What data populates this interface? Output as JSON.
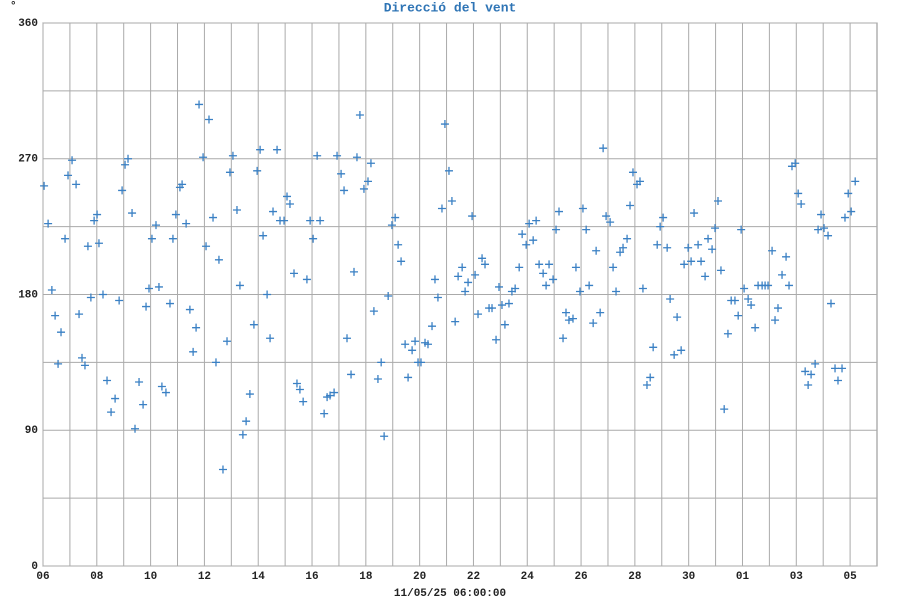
{
  "chart_data": {
    "type": "scatter",
    "title": "Direcció del vent",
    "xlabel": "11/05/25 06:00:00",
    "ylabel": "°",
    "color": "#3a80c4",
    "marker": "+",
    "grid": true,
    "xlim": [
      0,
      31
    ],
    "ylim": [
      0,
      360
    ],
    "xticks": [
      {
        "value": 0,
        "label": "06"
      },
      {
        "value": 2,
        "label": "08"
      },
      {
        "value": 4,
        "label": "10"
      },
      {
        "value": 6,
        "label": "12"
      },
      {
        "value": 8,
        "label": "14"
      },
      {
        "value": 10,
        "label": "16"
      },
      {
        "value": 12,
        "label": "18"
      },
      {
        "value": 14,
        "label": "20"
      },
      {
        "value": 16,
        "label": "22"
      },
      {
        "value": 18,
        "label": "24"
      },
      {
        "value": 20,
        "label": "26"
      },
      {
        "value": 22,
        "label": "28"
      },
      {
        "value": 24,
        "label": "30"
      },
      {
        "value": 26,
        "label": "01"
      },
      {
        "value": 28,
        "label": "03"
      },
      {
        "value": 30,
        "label": "05"
      }
    ],
    "xminorticks": [
      1,
      3,
      5,
      7,
      9,
      11,
      13,
      15,
      17,
      19,
      21,
      23,
      25,
      27,
      29
    ],
    "yticks": [
      0,
      90,
      180,
      270,
      360
    ],
    "yminorticks": [
      45,
      135,
      225,
      315
    ],
    "x": [
      0.04,
      0.19,
      0.33,
      0.45,
      0.56,
      0.67,
      0.82,
      0.93,
      1.08,
      1.23,
      1.34,
      1.45,
      1.56,
      1.67,
      1.78,
      1.9,
      2.01,
      2.08,
      2.23,
      2.38,
      2.53,
      2.68,
      2.83,
      2.94,
      3.05,
      3.16,
      3.31,
      3.42,
      3.57,
      3.72,
      3.83,
      3.94,
      4.05,
      4.2,
      4.31,
      4.42,
      4.57,
      4.72,
      4.83,
      4.94,
      5.09,
      5.17,
      5.32,
      5.46,
      5.58,
      5.69,
      5.8,
      5.95,
      6.06,
      6.17,
      6.32,
      6.43,
      6.54,
      6.69,
      6.84,
      6.95,
      7.06,
      7.21,
      7.32,
      7.43,
      7.55,
      7.69,
      7.84,
      7.96,
      8.07,
      8.18,
      8.33,
      8.44,
      8.55,
      8.7,
      8.81,
      8.96,
      9.07,
      9.18,
      9.33,
      9.44,
      9.55,
      9.67,
      9.81,
      9.93,
      10.04,
      10.19,
      10.3,
      10.45,
      10.56,
      10.67,
      10.82,
      10.93,
      11.08,
      11.19,
      11.3,
      11.45,
      11.56,
      11.67,
      11.78,
      11.93,
      12.08,
      12.19,
      12.3,
      12.45,
      12.57,
      12.68,
      12.83,
      12.97,
      13.09,
      13.2,
      13.31,
      13.46,
      13.57,
      13.72,
      13.83,
      13.94,
      14.05,
      14.2,
      14.31,
      14.46,
      14.57,
      14.68,
      14.83,
      14.94,
      15.09,
      15.2,
      15.32,
      15.43,
      15.58,
      15.69,
      15.8,
      15.95,
      16.06,
      16.17,
      16.32,
      16.43,
      16.58,
      16.69,
      16.84,
      16.95,
      17.06,
      17.17,
      17.32,
      17.43,
      17.55,
      17.7,
      17.81,
      17.96,
      18.07,
      18.22,
      18.33,
      18.44,
      18.59,
      18.7,
      18.81,
      18.96,
      19.07,
      19.18,
      19.33,
      19.44,
      19.55,
      19.7,
      19.81,
      19.96,
      20.07,
      20.19,
      20.3,
      20.45,
      20.56,
      20.71,
      20.82,
      20.93,
      21.08,
      21.19,
      21.3,
      21.45,
      21.56,
      21.71,
      21.82,
      21.93,
      22.08,
      22.19,
      22.3,
      22.45,
      22.57,
      22.68,
      22.83,
      22.94,
      23.05,
      23.2,
      23.31,
      23.46,
      23.57,
      23.72,
      23.83,
      23.98,
      24.09,
      24.2,
      24.35,
      24.46,
      24.61,
      24.72,
      24.87,
      24.98,
      25.09,
      25.2,
      25.32,
      25.46,
      25.58,
      25.72,
      25.84,
      25.95,
      26.06,
      26.21,
      26.32,
      26.47,
      26.58,
      26.73,
      26.84,
      26.95,
      27.1,
      27.21,
      27.32,
      27.47,
      27.62,
      27.73,
      27.84,
      27.96,
      28.07,
      28.18,
      28.33,
      28.44,
      28.55,
      28.7,
      28.81,
      28.92,
      29.03,
      29.18,
      29.29,
      29.44,
      29.55,
      29.7,
      29.81,
      29.93,
      30.04,
      30.19
    ],
    "values": [
      252,
      227,
      183,
      166,
      134,
      155,
      217,
      259,
      269,
      253,
      167,
      138,
      133,
      212,
      178,
      229,
      233,
      214,
      180,
      123,
      102,
      111,
      176,
      249,
      266,
      270,
      234,
      91,
      122,
      107,
      172,
      184,
      217,
      226,
      185,
      119,
      115,
      174,
      217,
      233,
      251,
      253,
      227,
      170,
      142,
      158,
      306,
      271,
      212,
      296,
      231,
      135,
      203,
      64,
      149,
      261,
      272,
      236,
      186,
      87,
      96,
      114,
      160,
      262,
      276,
      219,
      180,
      151,
      235,
      276,
      229,
      229,
      245,
      240,
      194,
      121,
      117,
      109,
      190,
      229,
      217,
      272,
      229,
      101,
      112,
      113,
      115,
      272,
      260,
      249,
      151,
      127,
      195,
      271,
      299,
      250,
      255,
      267,
      169,
      124,
      135,
      86,
      179,
      226,
      231,
      213,
      202,
      147,
      125,
      143,
      149,
      135,
      135,
      148,
      147,
      159,
      190,
      178,
      237,
      293,
      262,
      242,
      162,
      192,
      198,
      182,
      188,
      232,
      193,
      167,
      204,
      200,
      171,
      171,
      150,
      185,
      173,
      160,
      174,
      182,
      184,
      198,
      220,
      213,
      227,
      216,
      229,
      200,
      194,
      186,
      200,
      190,
      223,
      235,
      151,
      168,
      163,
      164,
      198,
      182,
      237,
      223,
      186,
      161,
      209,
      168,
      277,
      232,
      228,
      198,
      182,
      208,
      211,
      217,
      239,
      261,
      253,
      255,
      184,
      120,
      125,
      145,
      213,
      225,
      231,
      211,
      177,
      140,
      165,
      143,
      200,
      211,
      202,
      234,
      213,
      202,
      192,
      217,
      210,
      224,
      242,
      196,
      104,
      154,
      176,
      176,
      166,
      223,
      184,
      177,
      173,
      158,
      186,
      186,
      186,
      186,
      209,
      163,
      171,
      193,
      205,
      186,
      265,
      267,
      247,
      240,
      129,
      120,
      127,
      134,
      223,
      233,
      224,
      219,
      174,
      131,
      123,
      131,
      231,
      247,
      235,
      255
    ]
  }
}
